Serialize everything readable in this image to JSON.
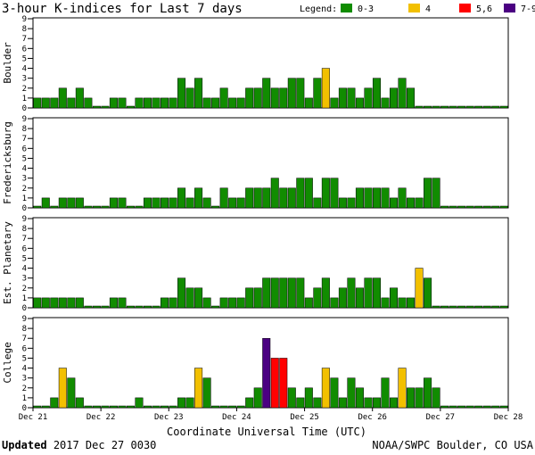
{
  "chart_data": {
    "type": "bar",
    "title": "3-hour K-indices for Last 7 days",
    "legend": {
      "label": "Legend:",
      "items": [
        {
          "label": "0-3",
          "color": "#118c00"
        },
        {
          "label": "4",
          "color": "#f2c000"
        },
        {
          "label": "5,6",
          "color": "#ff0000"
        },
        {
          "label": "7-9",
          "color": "#4b0082"
        }
      ]
    },
    "xlabel": "Coordinate Universal Time (UTC)",
    "x_ticks": [
      "Dec 21",
      "Dec 22",
      "Dec 23",
      "Dec 24",
      "Dec 25",
      "Dec 26",
      "Dec 27",
      "Dec 28"
    ],
    "y_ticks": [
      "0",
      "1",
      "2",
      "3",
      "4",
      "5",
      "6",
      "7",
      "8",
      "9"
    ],
    "ylim": [
      0,
      9
    ],
    "intervals_per_day": 8,
    "colors": {
      "0-3": "#118c00",
      "4": "#f2c000",
      "5,6": "#ff0000",
      "7-9": "#4b0082"
    },
    "panels": [
      {
        "name": "Boulder",
        "values": [
          1,
          1,
          1,
          2,
          1,
          2,
          1,
          0,
          0,
          1,
          1,
          0,
          1,
          1,
          1,
          1,
          1,
          3,
          2,
          3,
          1,
          1,
          2,
          1,
          1,
          2,
          2,
          3,
          2,
          2,
          3,
          3,
          1,
          3,
          4,
          1,
          2,
          2,
          1,
          2,
          3,
          1,
          2,
          3,
          2,
          0,
          0,
          0,
          0,
          0,
          0,
          0,
          0,
          0,
          0,
          0
        ]
      },
      {
        "name": "Fredericksburg",
        "values": [
          0,
          1,
          0,
          1,
          1,
          1,
          0,
          0,
          0,
          1,
          1,
          0,
          0,
          1,
          1,
          1,
          1,
          2,
          1,
          2,
          1,
          0,
          2,
          1,
          1,
          2,
          2,
          2,
          3,
          2,
          2,
          3,
          3,
          1,
          3,
          3,
          1,
          1,
          2,
          2,
          2,
          2,
          1,
          2,
          1,
          1,
          3,
          3,
          0,
          0,
          0,
          0,
          0,
          0,
          0,
          0
        ]
      },
      {
        "name": "Est. Planetary",
        "values": [
          1,
          1,
          1,
          1,
          1,
          1,
          0,
          0,
          0,
          1,
          1,
          0,
          0,
          0,
          0,
          1,
          1,
          3,
          2,
          2,
          1,
          0,
          1,
          1,
          1,
          2,
          2,
          3,
          3,
          3,
          3,
          3,
          1,
          2,
          3,
          1,
          2,
          3,
          2,
          3,
          3,
          1,
          2,
          1,
          1,
          4,
          3,
          0,
          0,
          0,
          0,
          0,
          0,
          0,
          0,
          0
        ]
      },
      {
        "name": "College",
        "values": [
          0,
          0,
          1,
          4,
          3,
          1,
          0,
          0,
          0,
          0,
          0,
          0,
          1,
          0,
          0,
          0,
          0,
          1,
          1,
          4,
          3,
          0,
          0,
          0,
          0,
          1,
          2,
          7,
          5,
          5,
          2,
          1,
          2,
          1,
          4,
          3,
          1,
          3,
          2,
          1,
          1,
          3,
          1,
          4,
          2,
          2,
          3,
          2,
          0,
          0,
          0,
          0,
          0,
          0,
          0,
          0
        ]
      }
    ]
  },
  "footer": {
    "updated_label": "Updated",
    "updated_value": "2017 Dec 27 0030",
    "source": "NOAA/SWPC Boulder, CO USA"
  }
}
